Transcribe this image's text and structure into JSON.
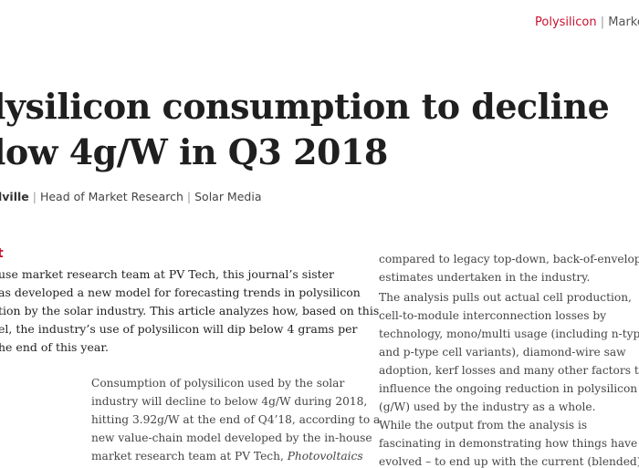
{
  "header": {
    "section": "Polysilicon",
    "separator": "|",
    "category": "Market"
  },
  "title": {
    "line1": "lysilicon consumption to decline",
    "line2": "low 4g/W in Q3 2018"
  },
  "byline": {
    "author": "lville",
    "role": "Head of Market Research",
    "org": "Solar Media",
    "sep": "|"
  },
  "abstract": {
    "heading": "t",
    "lines": [
      "use market research team at PV Tech, this journal’s sister",
      "as developed a new model for forecasting trends in polysilicon",
      "tion by the solar industry. This article analyzes how, based on this",
      "el, the industry’s use of polysilicon will dip below 4 grams per",
      "he end of this year."
    ]
  },
  "column1": {
    "lines": [
      "Consumption of polysilicon used by the solar",
      "industry will decline to below 4g/W during 2018,",
      "hitting 3.92g/W at the end of Q4’18, according to a",
      "new value-chain model developed by the in-house",
      "market research team at PV Tech, "
    ],
    "italic_tail": "Photovoltaics"
  },
  "column2": {
    "lines": [
      "compared to legacy top-down, back-of-envelope",
      "estimates undertaken in the industry.",
      "   The analysis pulls out actual cell production,",
      "cell-to-module interconnection losses by",
      "technology, mono/multi usage (including n-type",
      "and p-type cell variants), diamond-wire saw",
      "adoption, kerf losses and many other factors that",
      "influence the ongoing reduction in polysilicon",
      "(g/W) used by the industry as a whole.",
      "   While the output from the analysis is",
      "fascinating in demonstrating how things have",
      "evolved – to end up with the current (blended)"
    ]
  }
}
